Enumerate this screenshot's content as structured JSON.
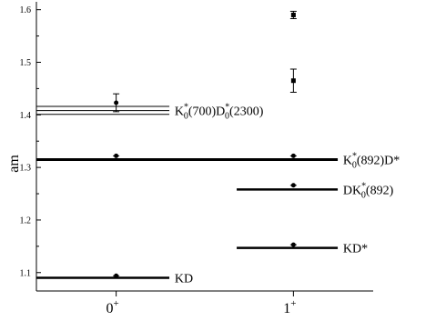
{
  "chart_data": {
    "type": "scatter",
    "title": "",
    "xlabel": "",
    "ylabel": "am",
    "xlim": [
      -0.45,
      1.45
    ],
    "ylim": [
      1.065,
      1.615
    ],
    "categories": [
      "0+",
      "1+"
    ],
    "x_ticks": [
      {
        "x": 0,
        "base": "0",
        "sup": "+"
      },
      {
        "x": 1,
        "base": "1",
        "sup": "+"
      }
    ],
    "y_ticks": [
      1.1,
      1.2,
      1.3,
      1.4,
      1.5,
      1.6
    ],
    "grid": false,
    "points": [
      {
        "x": 0,
        "y": 1.094,
        "err": 0.003,
        "marker": "circle"
      },
      {
        "x": 0,
        "y": 1.322,
        "err": 0.003,
        "marker": "circle"
      },
      {
        "x": 0,
        "y": 1.423,
        "err": 0.017,
        "marker": "circle"
      },
      {
        "x": 1,
        "y": 1.153,
        "err": 0.003,
        "marker": "circle"
      },
      {
        "x": 1,
        "y": 1.266,
        "err": 0.003,
        "marker": "circle"
      },
      {
        "x": 1,
        "y": 1.322,
        "err": 0.003,
        "marker": "circle"
      },
      {
        "x": 1,
        "y": 1.465,
        "err": 0.022,
        "marker": "square"
      },
      {
        "x": 1,
        "y": 1.59,
        "err": 0.007,
        "marker": "square"
      }
    ],
    "thresholds": [
      {
        "y": 1.09,
        "x_from": -0.45,
        "x_to": 0.3,
        "thick": true
      },
      {
        "y": 1.147,
        "x_from": 0.68,
        "x_to": 1.25,
        "thick": true
      },
      {
        "y": 1.258,
        "x_from": 0.68,
        "x_to": 1.25,
        "thick": true
      },
      {
        "y": 1.315,
        "x_from": -0.45,
        "x_to": 1.25,
        "thick": true,
        "heavy": true
      },
      {
        "y": 1.401,
        "x_from": -0.45,
        "x_to": 0.3,
        "thick": false
      },
      {
        "y": 1.408,
        "x_from": -0.45,
        "x_to": 0.3,
        "thick": false
      },
      {
        "y": 1.416,
        "x_from": -0.45,
        "x_to": 0.3,
        "thick": false
      }
    ],
    "annotations": [
      {
        "name": "kd",
        "parts": [
          {
            "t": "KD"
          }
        ],
        "x": 0.33,
        "y": 1.09
      },
      {
        "name": "kd-star",
        "parts": [
          {
            "t": "KD*"
          }
        ],
        "x": 1.28,
        "y": 1.147
      },
      {
        "name": "dk0-star-892",
        "parts": [
          {
            "t": "DK"
          },
          {
            "t": "*",
            "sup": true
          },
          {
            "t": "0",
            "sub": true
          },
          {
            "t": "(892)"
          }
        ],
        "x": 1.28,
        "y": 1.258
      },
      {
        "name": "k0-star-892-dstar",
        "parts": [
          {
            "t": "K"
          },
          {
            "t": "*",
            "sup": true
          },
          {
            "t": "0",
            "sub": true
          },
          {
            "t": "(892)D*"
          }
        ],
        "x": 1.28,
        "y": 1.315
      },
      {
        "name": "k0-star-700-d0-star-2300",
        "parts": [
          {
            "t": "K"
          },
          {
            "t": "*",
            "sup": true
          },
          {
            "t": "0",
            "sub": true
          },
          {
            "t": "(700)D"
          },
          {
            "t": "*",
            "sup": true
          },
          {
            "t": "0",
            "sub": true
          },
          {
            "t": "(2300)"
          }
        ],
        "x": 0.33,
        "y": 1.408
      }
    ]
  }
}
